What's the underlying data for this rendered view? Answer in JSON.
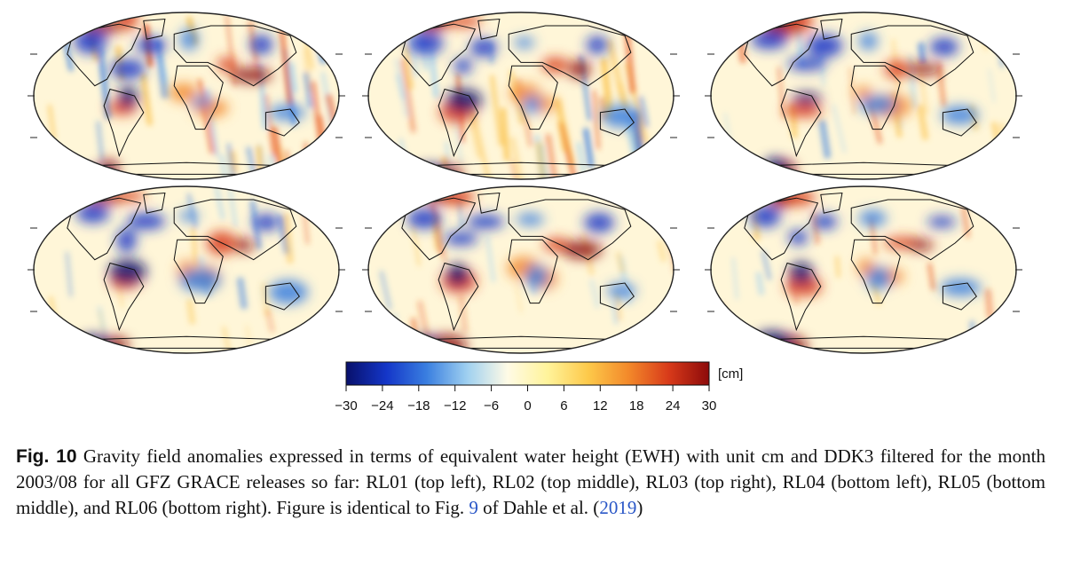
{
  "figure": {
    "panels": [
      {
        "release": "RL01",
        "position": "top left",
        "noise": 1.0
      },
      {
        "release": "RL02",
        "position": "top middle",
        "noise": 1.0
      },
      {
        "release": "RL03",
        "position": "top right",
        "noise": 0.55
      },
      {
        "release": "RL04",
        "position": "bottom left",
        "noise": 0.5
      },
      {
        "release": "RL05",
        "position": "bottom middle",
        "noise": 0.5
      },
      {
        "release": "RL06",
        "position": "bottom right",
        "noise": 0.35
      }
    ],
    "colorbar": {
      "unit": "[cm]",
      "ticks": [
        "−30",
        "−24",
        "−18",
        "−12",
        "−6",
        "0",
        "6",
        "12",
        "18",
        "24",
        "30"
      ],
      "range": [
        -30,
        30
      ],
      "colors": [
        "#08106b",
        "#1436c8",
        "#3a7fe0",
        "#9fd0f0",
        "#fffbe6",
        "#fff39a",
        "#fdc94a",
        "#f3892a",
        "#d83a1a",
        "#8c0a0a"
      ]
    }
  },
  "caption": {
    "label": "Fig. 10",
    "text_1": " Gravity field anomalies expressed in terms of equivalent water height (EWH) with unit cm and DDK3 filtered for the month 2003/08 for all GFZ GRACE releases so far: RL01 (top left), RL02 (top middle), RL03 (top right), RL04 (bottom left), RL05 (bottom middle), and RL06 (bottom right). Figure is identical to Fig. ",
    "fig_ref": "9",
    "text_2": " of Dahle et al. (",
    "year_ref": "2019",
    "text_3": ")"
  }
}
